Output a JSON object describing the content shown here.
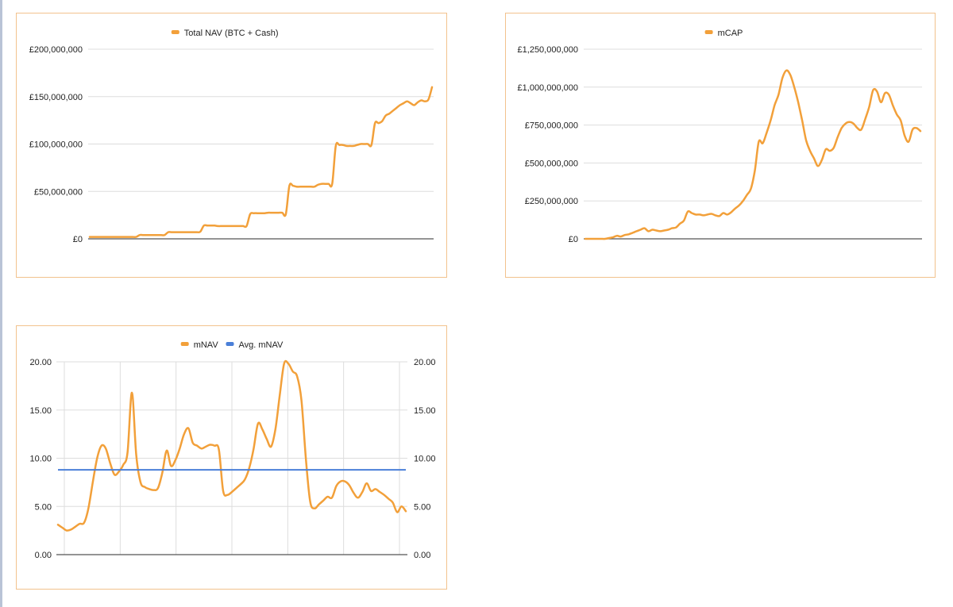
{
  "colors": {
    "orange": "#f2a03a",
    "blue": "#4a7fd8",
    "grid": "#dddddd",
    "axis": "#555555",
    "card_border": "#f2c28d"
  },
  "chart_data": [
    {
      "id": "nav",
      "type": "line",
      "legend_position": "top",
      "series": [
        {
          "name": "Total NAV (BTC + Cash)",
          "color": "#f2a03a",
          "values": [
            2000000,
            2000000,
            2000000,
            2000000,
            2000000,
            2000000,
            2000000,
            2000000,
            2000000,
            2000000,
            2000000,
            2000000,
            2000000,
            2000000,
            4000000,
            4000000,
            4000000,
            4000000,
            4000000,
            4000000,
            4000000,
            4000000,
            7000000,
            7000000,
            7000000,
            7000000,
            7000000,
            7000000,
            7000000,
            7000000,
            7000000,
            7500000,
            14000000,
            14000000,
            14000000,
            14000000,
            13500000,
            13500000,
            13500000,
            13500000,
            13500000,
            13500000,
            13500000,
            13500000,
            13500000,
            26000000,
            27000000,
            27000000,
            27000000,
            27000000,
            27500000,
            27500000,
            27500000,
            27500000,
            27500000,
            26000000,
            56000000,
            56000000,
            55000000,
            55000000,
            55000000,
            55000000,
            55000000,
            55000000,
            57000000,
            58000000,
            58000000,
            58000000,
            58000000,
            98000000,
            99000000,
            99000000,
            98000000,
            98000000,
            98000000,
            99000000,
            100000000,
            100000000,
            100000000,
            99000000,
            122000000,
            122000000,
            124000000,
            130000000,
            132000000,
            135000000,
            138000000,
            141000000,
            143000000,
            145000000,
            143000000,
            141000000,
            144000000,
            146000000,
            145000000,
            147000000,
            160000000
          ]
        }
      ],
      "y_axis": {
        "min": 0,
        "max": 200000000,
        "ticks": [
          "£0",
          "£50,000,000",
          "£100,000,000",
          "£150,000,000",
          "£200,000,000"
        ]
      },
      "grid": true
    },
    {
      "id": "mcap",
      "type": "line",
      "legend_position": "top",
      "series": [
        {
          "name": "mCAP",
          "color": "#f2a03a",
          "values": [
            0,
            0,
            0,
            0,
            0,
            0,
            5000000,
            10000000,
            20000000,
            15000000,
            25000000,
            30000000,
            40000000,
            50000000,
            60000000,
            70000000,
            50000000,
            60000000,
            55000000,
            50000000,
            55000000,
            60000000,
            70000000,
            75000000,
            100000000,
            120000000,
            180000000,
            170000000,
            160000000,
            160000000,
            155000000,
            160000000,
            165000000,
            155000000,
            150000000,
            170000000,
            160000000,
            175000000,
            200000000,
            220000000,
            250000000,
            290000000,
            330000000,
            450000000,
            640000000,
            630000000,
            700000000,
            780000000,
            880000000,
            950000000,
            1060000000,
            1110000000,
            1080000000,
            1000000000,
            900000000,
            780000000,
            650000000,
            580000000,
            530000000,
            480000000,
            520000000,
            590000000,
            580000000,
            600000000,
            670000000,
            730000000,
            760000000,
            770000000,
            760000000,
            730000000,
            720000000,
            790000000,
            870000000,
            980000000,
            970000000,
            900000000,
            960000000,
            950000000,
            880000000,
            820000000,
            780000000,
            680000000,
            640000000,
            720000000,
            730000000,
            710000000
          ]
        }
      ],
      "y_axis": {
        "min": 0,
        "max": 1250000000,
        "ticks": [
          "£0",
          "£250,000,000",
          "£500,000,000",
          "£750,000,000",
          "£1,000,000,000",
          "£1,250,000,000"
        ]
      },
      "grid": true
    },
    {
      "id": "mnav",
      "type": "line",
      "legend_position": "top",
      "series": [
        {
          "name": "mNAV",
          "color": "#f2a03a",
          "values": [
            3.1,
            2.8,
            2.5,
            2.6,
            2.9,
            3.2,
            3.3,
            4.8,
            7.5,
            10.0,
            11.3,
            11.0,
            9.5,
            8.3,
            8.6,
            9.3,
            10.6,
            16.8,
            10.3,
            7.5,
            7.0,
            6.8,
            6.7,
            6.9,
            8.5,
            10.8,
            9.2,
            9.8,
            11.0,
            12.5,
            13.1,
            11.6,
            11.3,
            11.0,
            11.2,
            11.4,
            11.3,
            10.9,
            6.6,
            6.2,
            6.5,
            6.9,
            7.3,
            7.8,
            9.0,
            11.0,
            13.6,
            13.0,
            12.0,
            11.2,
            13.0,
            16.5,
            19.8,
            19.8,
            19.0,
            18.5,
            16.0,
            10.0,
            5.5,
            4.8,
            5.2,
            5.6,
            6.0,
            5.9,
            7.1,
            7.6,
            7.6,
            7.2,
            6.4,
            5.9,
            6.5,
            7.4,
            6.6,
            6.8,
            6.5,
            6.2,
            5.8,
            5.4,
            4.4,
            5.0,
            4.5
          ]
        },
        {
          "name": "Avg. mNAV",
          "color": "#4a7fd8",
          "values": [
            8.8,
            8.8
          ]
        }
      ],
      "y_axis": {
        "min": 0,
        "max": 20,
        "ticks": [
          "0.00",
          "5.00",
          "10.00",
          "15.00",
          "20.00"
        ]
      },
      "y_axis_right": {
        "min": 0,
        "max": 20,
        "ticks": [
          "0.00",
          "5.00",
          "10.00",
          "15.00",
          "20.00"
        ]
      },
      "vertical_grid": true,
      "grid": true
    }
  ]
}
